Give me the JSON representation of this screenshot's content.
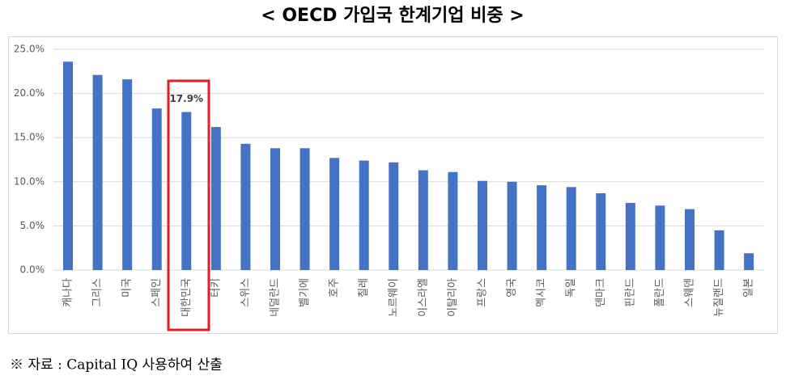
{
  "chart_data": {
    "type": "bar",
    "title": "< OECD 가입국 한계기업 비중 >",
    "categories": [
      "캐나다",
      "그리스",
      "미국",
      "스페인",
      "대한민국",
      "터키",
      "스위스",
      "네덜란드",
      "벨기에",
      "호주",
      "칠레",
      "노르웨이",
      "이스라엘",
      "이탈리아",
      "프랑스",
      "영국",
      "멕시코",
      "독일",
      "덴마크",
      "핀란드",
      "폴란드",
      "스웨덴",
      "뉴질랜드",
      "일본"
    ],
    "values": [
      23.6,
      22.1,
      21.6,
      18.3,
      17.9,
      16.2,
      14.3,
      13.8,
      13.8,
      12.7,
      12.4,
      12.2,
      11.3,
      11.1,
      10.1,
      10.0,
      9.6,
      9.4,
      8.7,
      7.6,
      7.3,
      6.9,
      4.5,
      1.9
    ],
    "value_labels": [
      null,
      null,
      null,
      null,
      "17.9%",
      null,
      null,
      null,
      null,
      null,
      null,
      null,
      null,
      null,
      null,
      null,
      null,
      null,
      null,
      null,
      null,
      null,
      null,
      null
    ],
    "color": "#4472c4",
    "ylim": [
      0,
      25
    ],
    "yticks": [
      {
        "value": 0,
        "label": "0.0%"
      },
      {
        "value": 5,
        "label": "5.0%"
      },
      {
        "value": 10,
        "label": "10.0%"
      },
      {
        "value": 15,
        "label": "15.0%"
      },
      {
        "value": 20,
        "label": "20.0%"
      },
      {
        "value": 25,
        "label": "25.0%"
      }
    ],
    "grid": true,
    "source": "※ 자료 : Capital IQ 사용하여 산출"
  }
}
